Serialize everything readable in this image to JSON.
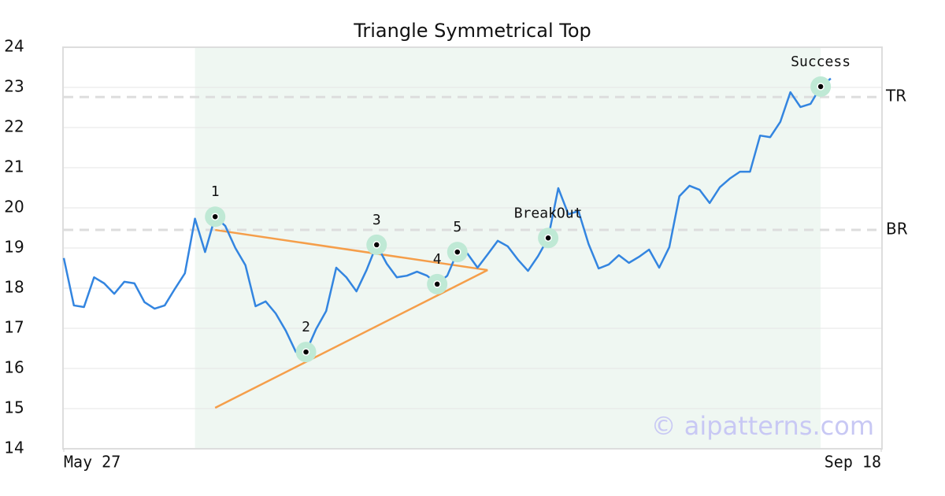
{
  "chart_data": {
    "type": "line",
    "title": "Triangle Symmetrical Top",
    "x": [
      0,
      1,
      2,
      3,
      4,
      5,
      6,
      7,
      8,
      9,
      10,
      11,
      12,
      13,
      14,
      15,
      16,
      17,
      18,
      19,
      20,
      21,
      22,
      23,
      24,
      25,
      26,
      27,
      28,
      29,
      30,
      31,
      32,
      33,
      34,
      35,
      36,
      37,
      38,
      39,
      40,
      41,
      42,
      43,
      44,
      45,
      46,
      47,
      48,
      49,
      50,
      51,
      52,
      53,
      54,
      55,
      56,
      57,
      58,
      59,
      60,
      61,
      62,
      63,
      64,
      65,
      66,
      67,
      68,
      69,
      70,
      71,
      72,
      73,
      74,
      75,
      76
    ],
    "values": [
      18.75,
      17.57,
      17.53,
      18.27,
      18.12,
      17.86,
      18.16,
      18.12,
      17.65,
      17.49,
      17.57,
      17.98,
      18.37,
      19.73,
      18.9,
      19.78,
      19.55,
      19.0,
      18.57,
      17.55,
      17.67,
      17.37,
      16.94,
      16.41,
      16.41,
      16.98,
      17.43,
      18.51,
      18.27,
      17.92,
      18.45,
      19.08,
      18.61,
      18.27,
      18.31,
      18.41,
      18.31,
      18.1,
      18.31,
      18.9,
      18.86,
      18.51,
      18.84,
      19.18,
      19.04,
      18.71,
      18.43,
      18.8,
      19.25,
      20.49,
      19.84,
      19.92,
      19.1,
      18.49,
      18.59,
      18.82,
      18.63,
      18.78,
      18.96,
      18.51,
      19.02,
      20.29,
      20.55,
      20.45,
      20.12,
      20.51,
      20.73,
      20.9,
      20.9,
      21.8,
      21.76,
      22.14,
      22.88,
      22.51,
      22.59,
      23.02,
      23.22
    ],
    "color": "#3385e0",
    "xlim": [
      0,
      81
    ],
    "xticks": [
      {
        "value": 0,
        "label": "May 27"
      },
      {
        "value": 81,
        "label": "Sep 18"
      }
    ],
    "ylim": [
      14,
      24
    ],
    "yticks": [
      14,
      15,
      16,
      17,
      18,
      19,
      20,
      21,
      22,
      23,
      24
    ],
    "grid": true,
    "shaded": {
      "xrange": [
        13,
        75
      ],
      "color": "#eff7f2"
    },
    "trendline_color": "#f59e4a",
    "trendlines": [
      {
        "x": [
          15,
          42
        ],
        "y": [
          19.45,
          18.45
        ]
      },
      {
        "x": [
          15,
          42
        ],
        "y": [
          15.02,
          18.45
        ]
      }
    ],
    "hlines": [
      {
        "label": "TR",
        "value": 22.76
      },
      {
        "label": "BR",
        "value": 19.45
      }
    ],
    "markers": [
      {
        "label": "1",
        "x": 15,
        "y": 19.78
      },
      {
        "label": "2",
        "x": 24,
        "y": 16.41
      },
      {
        "label": "3",
        "x": 31,
        "y": 19.08
      },
      {
        "label": "4",
        "x": 37,
        "y": 18.1
      },
      {
        "label": "5",
        "x": 39,
        "y": 18.9
      },
      {
        "label": "BreakOut",
        "x": 48,
        "y": 19.25
      },
      {
        "label": "Success",
        "x": 75,
        "y": 23.02
      }
    ],
    "watermark": "© aipatterns.com"
  }
}
